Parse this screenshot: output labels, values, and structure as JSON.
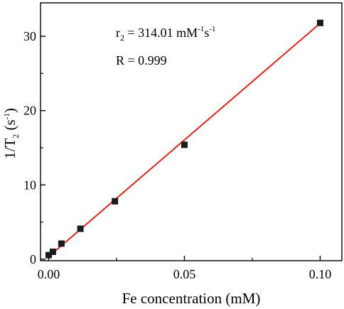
{
  "chart_data": {
    "type": "scatter",
    "xlabel": {
      "base": "Fe concentration (mM)"
    },
    "ylabel": {
      "pre": "1/T",
      "sub": "2",
      "mid": " (s",
      "sup": "-1",
      "post": ")"
    },
    "xlim": [
      -0.003,
      0.108
    ],
    "ylim": [
      -0.2,
      34.5
    ],
    "x_ticks": [
      0.0,
      0.05,
      0.1
    ],
    "x_tick_labels": [
      "0.00",
      "0.05",
      "0.10"
    ],
    "y_ticks": [
      0,
      10,
      20,
      30
    ],
    "y_tick_labels": [
      "0",
      "10",
      "20",
      "30"
    ],
    "grid": false,
    "legend": "none",
    "series": [
      {
        "x": [
          0.0,
          0.00156,
          0.00469,
          0.0117,
          0.0244,
          0.05,
          0.1
        ],
        "y": [
          0.55,
          1.0,
          2.1,
          4.1,
          7.8,
          15.4,
          31.8
        ],
        "color": "#1a1a1a",
        "marker": "square"
      }
    ],
    "fit_line": {
      "x": [
        0.0,
        0.1
      ],
      "y": [
        0.35,
        31.75
      ],
      "color": "#e8231a"
    },
    "annotations": {
      "r2": {
        "pre": "r",
        "sub": "2",
        "mid": " = 314.01 mM",
        "sup1": "-1",
        "mid2": "s",
        "sup2": "-1"
      },
      "R": "R = 0.999"
    }
  }
}
